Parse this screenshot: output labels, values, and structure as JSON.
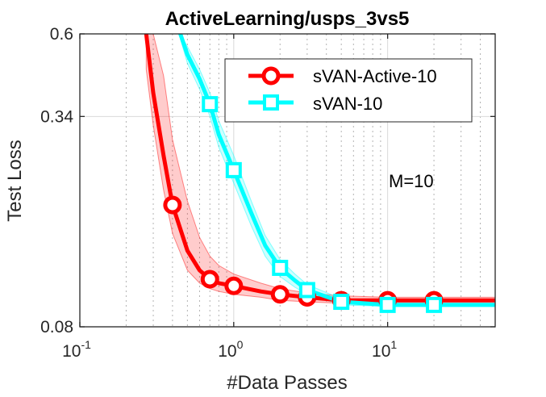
{
  "chart_data": {
    "type": "line",
    "title": "ActiveLearning/usps_3vs5",
    "xlabel": "#Data Passes",
    "ylabel": "Test Loss",
    "xscale": "log",
    "yscale": "log",
    "xlim": [
      0.1,
      50
    ],
    "ylim": [
      0.08,
      0.6
    ],
    "x_ticks": [
      {
        "value": 0.1,
        "base": "10",
        "exp": "-1"
      },
      {
        "value": 1,
        "base": "10",
        "exp": "0"
      },
      {
        "value": 10,
        "base": "10",
        "exp": "1"
      }
    ],
    "y_ticks": [
      {
        "value": 0.08,
        "label": "0.08"
      },
      {
        "value": 0.34,
        "label": "0.34"
      },
      {
        "value": 0.6,
        "label": "0.6"
      }
    ],
    "grid": true,
    "legend_position": "top-right",
    "annotation": "M=10",
    "series": [
      {
        "name": "sVAN-Active-10",
        "color": "#ff0000",
        "marker": "circle",
        "x": [
          0.27,
          0.3,
          0.35,
          0.4,
          0.5,
          0.6,
          0.7,
          0.8,
          1.0,
          1.5,
          2,
          3,
          5,
          10,
          20,
          50
        ],
        "y": [
          0.6,
          0.4,
          0.26,
          0.185,
          0.135,
          0.118,
          0.111,
          0.108,
          0.106,
          0.102,
          0.1,
          0.098,
          0.096,
          0.096,
          0.096,
          0.096
        ],
        "band_upper": [
          0.6,
          0.6,
          0.45,
          0.29,
          0.19,
          0.148,
          0.13,
          0.122,
          0.115,
          0.108,
          0.104,
          0.101,
          0.099,
          0.098,
          0.098,
          0.098
        ],
        "band_lower": [
          0.47,
          0.32,
          0.205,
          0.152,
          0.118,
          0.108,
          0.104,
          0.102,
          0.1,
          0.098,
          0.096,
          0.095,
          0.094,
          0.094,
          0.094,
          0.094
        ],
        "marker_x": [
          0.4,
          0.7,
          1,
          2,
          3,
          5,
          10,
          20
        ],
        "marker_y": [
          0.185,
          0.111,
          0.106,
          0.1,
          0.098,
          0.096,
          0.096,
          0.096
        ]
      },
      {
        "name": "sVAN-10",
        "color": "#00ffff",
        "marker": "square",
        "x": [
          0.45,
          0.5,
          0.6,
          0.7,
          0.8,
          1.0,
          1.3,
          1.6,
          2,
          2.5,
          3,
          5,
          10,
          20,
          50
        ],
        "y": [
          0.6,
          0.52,
          0.44,
          0.37,
          0.3,
          0.235,
          0.175,
          0.14,
          0.12,
          0.11,
          0.103,
          0.095,
          0.093,
          0.093,
          0.093
        ],
        "band_upper": [
          0.6,
          0.55,
          0.47,
          0.4,
          0.33,
          0.26,
          0.19,
          0.15,
          0.127,
          0.115,
          0.107,
          0.097,
          0.095,
          0.095,
          0.095
        ],
        "band_lower": [
          0.58,
          0.49,
          0.41,
          0.34,
          0.275,
          0.215,
          0.16,
          0.13,
          0.113,
          0.105,
          0.1,
          0.093,
          0.092,
          0.092,
          0.092
        ],
        "marker_x": [
          0.7,
          1,
          2,
          3,
          5,
          10,
          20
        ],
        "marker_y": [
          0.37,
          0.235,
          0.12,
          0.103,
          0.095,
          0.093,
          0.093
        ]
      }
    ]
  }
}
